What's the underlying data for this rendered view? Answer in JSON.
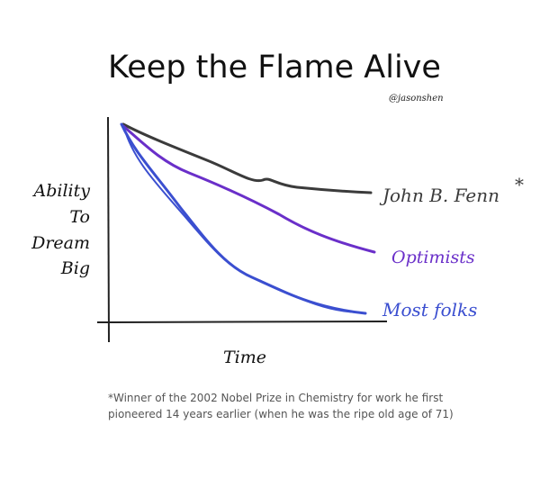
{
  "title": "Keep the Flame Alive",
  "handle": "@jasonshen",
  "y_label": [
    "Ability",
    "To",
    "Dream",
    "Big"
  ],
  "x_label": "Time",
  "curves": [
    {
      "label": "John B. Fenn",
      "mark": "*"
    },
    {
      "label": "Optimists"
    },
    {
      "label": "Most folks"
    }
  ],
  "footnote": [
    "*Winner of the 2002 Nobel Prize in Chemistry for work he first",
    "pioneered 14 years earlier (when he was the ripe old age of 71)"
  ]
}
